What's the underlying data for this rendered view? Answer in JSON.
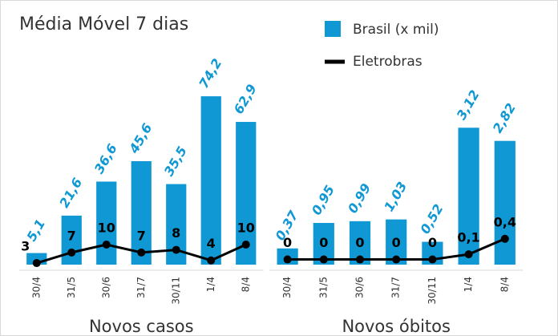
{
  "title": "Média Móvel 7 dias",
  "chart_data": [
    {
      "type": "bar",
      "xlabel": "Novos casos",
      "categories": [
        "30/4",
        "31/5",
        "30/6",
        "31/7",
        "30/11",
        "1/4",
        "8/4"
      ],
      "ylim": [
        0,
        102.5
      ],
      "y2lim": [
        2.4,
        90.6
      ],
      "series": [
        {
          "name": "Brasil (x mil)",
          "color": "#0f98d3",
          "values": [
            5.1,
            21.6,
            36.6,
            45.6,
            35.5,
            74.2,
            62.9
          ],
          "value_labels": [
            "5,1",
            "21,6",
            "36,6",
            "45,6",
            "35,5",
            "74,2",
            "62,9"
          ]
        },
        {
          "name": "Eletrobras",
          "type": "line",
          "axis": "y2",
          "color": "#000000",
          "values": [
            3,
            7,
            10,
            7,
            8,
            4,
            10
          ]
        }
      ]
    },
    {
      "type": "bar",
      "xlabel": "Novos óbitos",
      "categories": [
        "30/4",
        "31/5",
        "30/6",
        "31/7",
        "30/11",
        "1/4",
        "8/4"
      ],
      "ylim": [
        0,
        5.3
      ],
      "y2lim": [
        -0.1,
        4.4
      ],
      "series": [
        {
          "color": "#0f98d3",
          "values": [
            0.37,
            0.95,
            0.99,
            1.03,
            0.52,
            3.12,
            2.82
          ],
          "value_labels": [
            "0,37",
            "0,95",
            "0,99",
            "1,03",
            "0,52",
            "3,12",
            "2,82"
          ]
        },
        {
          "type": "line",
          "axis": "y2",
          "color": "#000000",
          "values": [
            0,
            0,
            0,
            0,
            0,
            0.1,
            0.4
          ],
          "value_labels": [
            "0",
            "0",
            "0",
            "0",
            "0",
            "0,1",
            "0,4"
          ]
        }
      ]
    }
  ]
}
